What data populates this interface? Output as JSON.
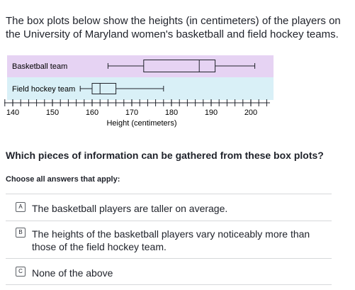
{
  "intro": "The box plots below show the heights (in centimeters) of the players on the University of Maryland women's basketball and field hockey teams.",
  "chart_data": {
    "type": "box",
    "xlabel": "Height (centimeters)",
    "xlim": [
      138,
      204
    ],
    "ticks": [
      140,
      150,
      160,
      170,
      180,
      190,
      200
    ],
    "minor_tick_step": 2,
    "series": [
      {
        "name": "Basketball team",
        "min": 164,
        "q1": 173,
        "median": 187,
        "q3": 191,
        "max": 201,
        "color": "#e6d3f3"
      },
      {
        "name": "Field hockey team",
        "min": 157,
        "q1": 160,
        "median": 162,
        "q3": 166,
        "max": 178,
        "color": "#d9f0f7"
      }
    ]
  },
  "question": "Which pieces of information can be gathered from these box plots?",
  "instruction": "Choose all answers that apply:",
  "choices": [
    {
      "letter": "A",
      "text": "The basketball players are taller on average."
    },
    {
      "letter": "B",
      "text": "The heights of the basketball players vary noticeably more than those of the field hockey team."
    },
    {
      "letter": "C",
      "text": "None of the above"
    }
  ]
}
